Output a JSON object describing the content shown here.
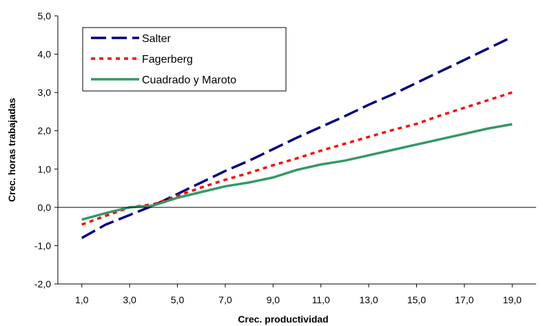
{
  "chart_data": {
    "type": "line",
    "xlabel": "Crec. productividad",
    "ylabel": "Crec. horas trabajadas",
    "xlim": [
      0,
      20
    ],
    "ylim": [
      -2.0,
      5.0
    ],
    "x_ticks": [
      1,
      3,
      5,
      7,
      9,
      11,
      13,
      15,
      17,
      19
    ],
    "x_tick_labels": [
      "1,0",
      "3,0",
      "5,0",
      "7,0",
      "9,0",
      "11,0",
      "13,0",
      "15,0",
      "17,0",
      "19,0"
    ],
    "y_ticks": [
      -2,
      -1,
      0,
      1,
      2,
      3,
      4,
      5
    ],
    "y_tick_labels": [
      "-2,0",
      "-1,0",
      "0,0",
      "1,0",
      "2,0",
      "3,0",
      "4,0",
      "5,0"
    ],
    "grid": false,
    "legend_position": "top-left",
    "x": [
      1,
      2,
      3,
      4,
      5,
      6,
      7,
      8,
      9,
      10,
      11,
      12,
      13,
      14,
      15,
      16,
      17,
      18,
      19
    ],
    "series": [
      {
        "name": "Salter",
        "color": "#000080",
        "style": "dashed",
        "values": [
          -0.8,
          -0.45,
          -0.2,
          0.05,
          0.35,
          0.65,
          0.95,
          1.22,
          1.52,
          1.82,
          2.1,
          2.38,
          2.68,
          2.95,
          3.25,
          3.55,
          3.85,
          4.15,
          4.45
        ]
      },
      {
        "name": "Fagerberg",
        "color": "#ff0000",
        "style": "dotted",
        "values": [
          -0.45,
          -0.22,
          0.0,
          0.08,
          0.3,
          0.52,
          0.72,
          0.9,
          1.1,
          1.28,
          1.48,
          1.66,
          1.84,
          2.02,
          2.18,
          2.4,
          2.6,
          2.8,
          3.0
        ]
      },
      {
        "name": "Cuadrado y Maroto",
        "color": "#339966",
        "style": "solid",
        "values": [
          -0.32,
          -0.15,
          0.0,
          0.05,
          0.25,
          0.4,
          0.55,
          0.65,
          0.78,
          0.98,
          1.12,
          1.22,
          1.36,
          1.5,
          1.64,
          1.78,
          1.92,
          2.06,
          2.17
        ]
      }
    ]
  }
}
